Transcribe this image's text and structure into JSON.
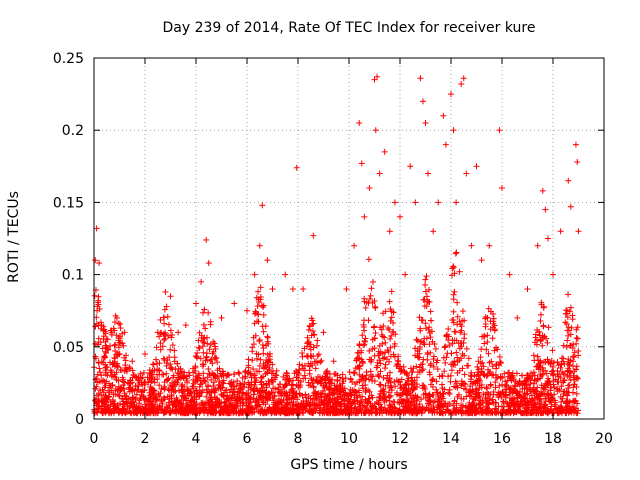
{
  "chart_data": {
    "type": "scatter",
    "title": "Day 239 of 2014, Rate Of TEC Index for receiver kure",
    "xlabel": "GPS time / hours",
    "ylabel": "ROTI / TECUs",
    "xlim": [
      0,
      20
    ],
    "ylim": [
      0,
      0.25
    ],
    "x_ticks": [
      0,
      2,
      4,
      6,
      8,
      10,
      12,
      14,
      16,
      18,
      20
    ],
    "y_ticks": [
      0,
      0.05,
      0.1,
      0.15,
      0.2,
      0.25
    ],
    "x_tick_labels": [
      "0",
      "2",
      "4",
      "6",
      "8",
      "10",
      "12",
      "14",
      "16",
      "18",
      "20"
    ],
    "y_tick_labels": [
      "0",
      "0.05",
      "0.1",
      "0.15",
      "0.2",
      "0.25"
    ],
    "grid": true,
    "marker": "+",
    "marker_color": "#ff0000",
    "series": [
      {
        "name": "ROTI",
        "points": [
          [
            0.05,
            0.11
          ],
          [
            0.1,
            0.132
          ],
          [
            0.12,
            0.075
          ],
          [
            0.2,
            0.108
          ],
          [
            0.3,
            0.065
          ],
          [
            0.4,
            0.062
          ],
          [
            0.9,
            0.07
          ],
          [
            1.2,
            0.06
          ],
          [
            1.5,
            0.04
          ],
          [
            2.0,
            0.045
          ],
          [
            2.5,
            0.06
          ],
          [
            2.8,
            0.088
          ],
          [
            3.0,
            0.085
          ],
          [
            3.3,
            0.06
          ],
          [
            3.6,
            0.065
          ],
          [
            4.0,
            0.08
          ],
          [
            4.2,
            0.095
          ],
          [
            4.4,
            0.124
          ],
          [
            4.5,
            0.108
          ],
          [
            5.0,
            0.07
          ],
          [
            5.5,
            0.08
          ],
          [
            6.0,
            0.075
          ],
          [
            6.3,
            0.1
          ],
          [
            6.5,
            0.12
          ],
          [
            6.6,
            0.148
          ],
          [
            6.8,
            0.11
          ],
          [
            7.0,
            0.09
          ],
          [
            7.5,
            0.1
          ],
          [
            7.8,
            0.09
          ],
          [
            7.95,
            0.174
          ],
          [
            8.2,
            0.09
          ],
          [
            8.6,
            0.127
          ],
          [
            9.0,
            0.06
          ],
          [
            9.4,
            0.04
          ],
          [
            9.9,
            0.09
          ],
          [
            10.2,
            0.12
          ],
          [
            10.4,
            0.205
          ],
          [
            10.5,
            0.177
          ],
          [
            10.6,
            0.14
          ],
          [
            10.8,
            0.16
          ],
          [
            11.0,
            0.235
          ],
          [
            11.1,
            0.237
          ],
          [
            11.05,
            0.2
          ],
          [
            11.2,
            0.17
          ],
          [
            11.4,
            0.185
          ],
          [
            11.6,
            0.13
          ],
          [
            11.8,
            0.15
          ],
          [
            12.0,
            0.14
          ],
          [
            12.2,
            0.1
          ],
          [
            12.4,
            0.175
          ],
          [
            12.6,
            0.15
          ],
          [
            12.8,
            0.236
          ],
          [
            12.9,
            0.22
          ],
          [
            13.0,
            0.205
          ],
          [
            13.1,
            0.17
          ],
          [
            13.3,
            0.13
          ],
          [
            13.5,
            0.15
          ],
          [
            13.7,
            0.21
          ],
          [
            13.8,
            0.19
          ],
          [
            14.0,
            0.225
          ],
          [
            14.1,
            0.2
          ],
          [
            14.2,
            0.15
          ],
          [
            14.4,
            0.232
          ],
          [
            14.5,
            0.236
          ],
          [
            14.6,
            0.17
          ],
          [
            14.8,
            0.12
          ],
          [
            15.0,
            0.175
          ],
          [
            15.2,
            0.11
          ],
          [
            15.5,
            0.12
          ],
          [
            15.9,
            0.2
          ],
          [
            16.0,
            0.16
          ],
          [
            16.3,
            0.1
          ],
          [
            16.6,
            0.07
          ],
          [
            17.0,
            0.09
          ],
          [
            17.4,
            0.12
          ],
          [
            17.6,
            0.158
          ],
          [
            17.7,
            0.145
          ],
          [
            17.8,
            0.125
          ],
          [
            18.0,
            0.1
          ],
          [
            18.3,
            0.13
          ],
          [
            18.6,
            0.165
          ],
          [
            18.7,
            0.147
          ],
          [
            18.9,
            0.19
          ],
          [
            18.95,
            0.178
          ],
          [
            19.0,
            0.13
          ]
        ]
      }
    ]
  }
}
